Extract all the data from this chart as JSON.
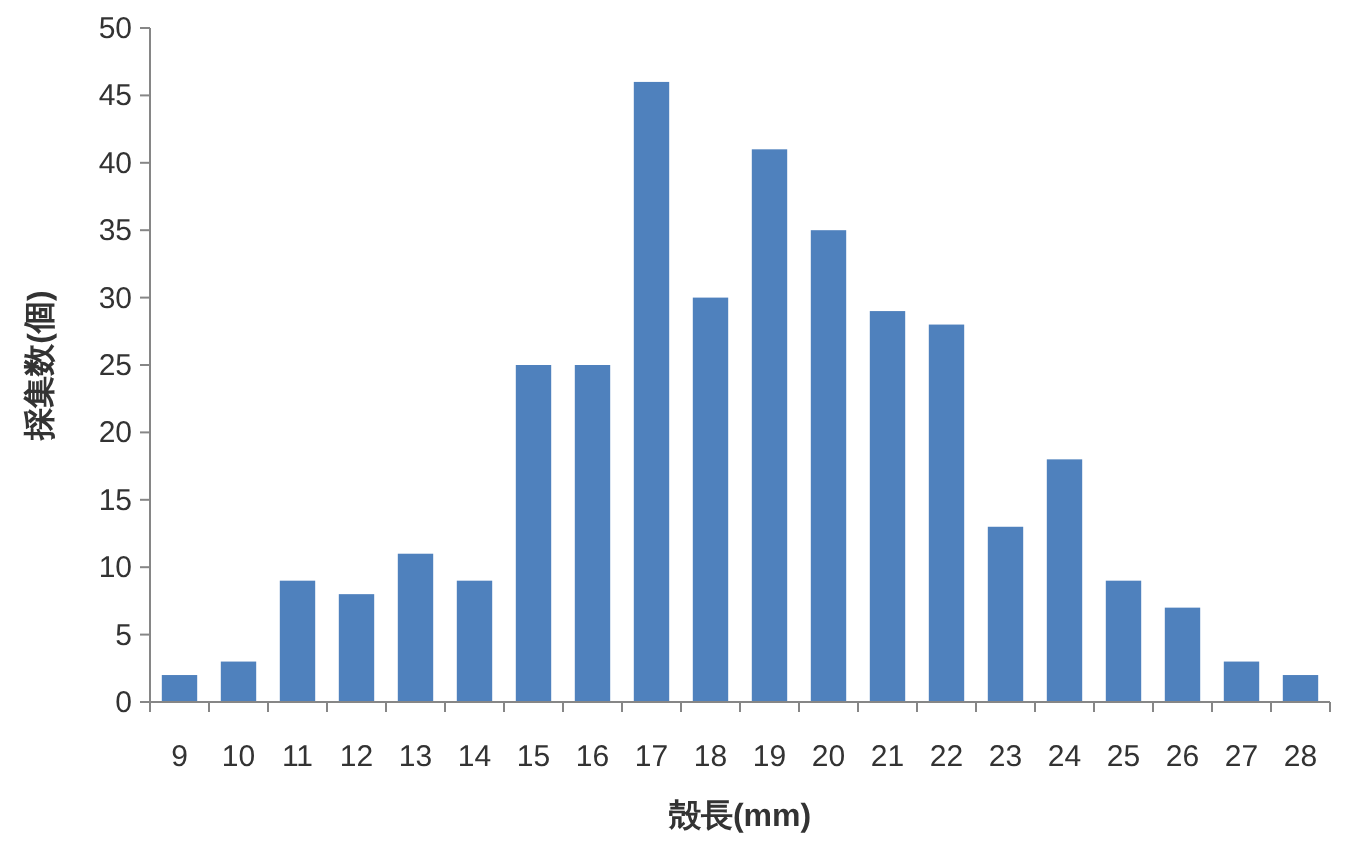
{
  "chart_data": {
    "type": "bar",
    "xlabel": "殻長(mm)",
    "ylabel": "採集数(個)",
    "categories": [
      "9",
      "10",
      "11",
      "12",
      "13",
      "14",
      "15",
      "16",
      "17",
      "18",
      "19",
      "20",
      "21",
      "22",
      "23",
      "24",
      "25",
      "26",
      "27",
      "28"
    ],
    "values": [
      2,
      3,
      9,
      8,
      11,
      9,
      25,
      25,
      46,
      30,
      41,
      35,
      29,
      28,
      13,
      18,
      9,
      7,
      3,
      2
    ],
    "color": "#4f81bd",
    "ylim": [
      0,
      50
    ],
    "yticks": [
      0,
      5,
      10,
      15,
      20,
      25,
      30,
      35,
      40,
      45,
      50
    ]
  }
}
